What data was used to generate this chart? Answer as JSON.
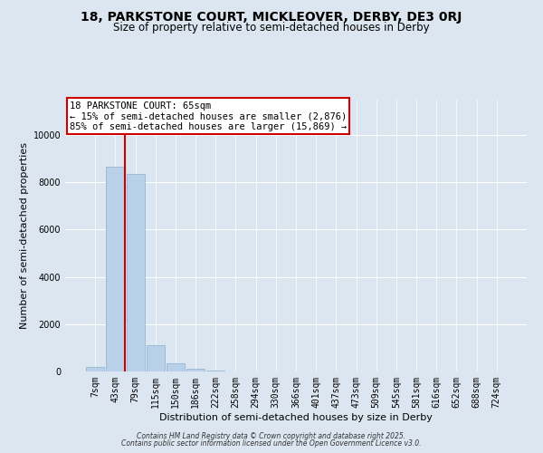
{
  "title": "18, PARKSTONE COURT, MICKLEOVER, DERBY, DE3 0RJ",
  "subtitle": "Size of property relative to semi-detached houses in Derby",
  "xlabel": "Distribution of semi-detached houses by size in Derby",
  "ylabel": "Number of semi-detached properties",
  "bin_labels": [
    "7sqm",
    "43sqm",
    "79sqm",
    "115sqm",
    "150sqm",
    "186sqm",
    "222sqm",
    "258sqm",
    "294sqm",
    "330sqm",
    "366sqm",
    "401sqm",
    "437sqm",
    "473sqm",
    "509sqm",
    "545sqm",
    "581sqm",
    "616sqm",
    "652sqm",
    "688sqm",
    "724sqm"
  ],
  "bar_values": [
    200,
    8650,
    8350,
    1100,
    350,
    100,
    50,
    10,
    5,
    2,
    1,
    0,
    0,
    0,
    0,
    0,
    0,
    0,
    0,
    0,
    0
  ],
  "bar_color": "#b8d0e8",
  "bar_edge_color": "#8ab0d0",
  "red_line_x": 1.5,
  "annotation_title": "18 PARKSTONE COURT: 65sqm",
  "annotation_line1": "← 15% of semi-detached houses are smaller (2,876)",
  "annotation_line2": "85% of semi-detached houses are larger (15,869) →",
  "annotation_box_color": "#ffffff",
  "annotation_box_edge": "#cc0000",
  "red_line_color": "#cc0000",
  "ylim_max": 11500,
  "yticks": [
    0,
    2000,
    4000,
    6000,
    8000,
    10000
  ],
  "bg_color": "#dce6f0",
  "plot_bg_color": "#dce6f0",
  "footer_line1": "Contains HM Land Registry data © Crown copyright and database right 2025.",
  "footer_line2": "Contains public sector information licensed under the Open Government Licence v3.0.",
  "title_fontsize": 10,
  "subtitle_fontsize": 8.5,
  "axis_label_fontsize": 8,
  "tick_fontsize": 7,
  "annotation_fontsize": 7.5,
  "footer_fontsize": 5.5
}
